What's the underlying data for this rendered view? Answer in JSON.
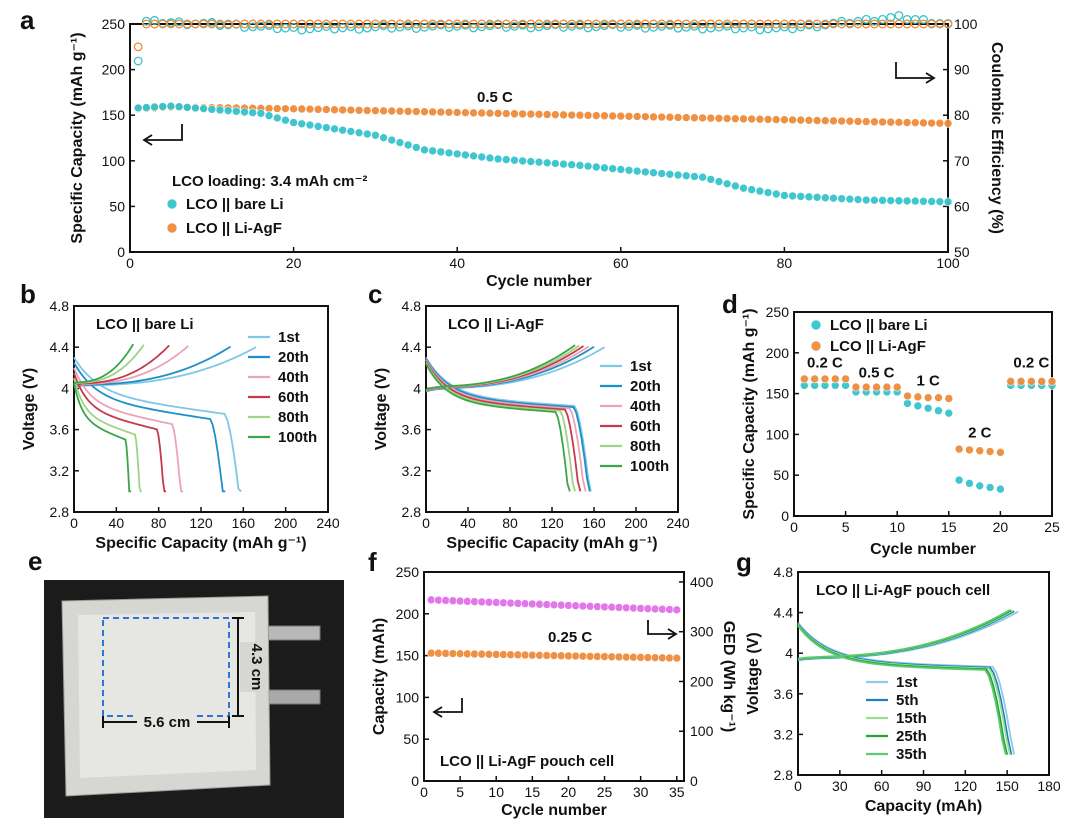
{
  "figure": {
    "panels": [
      "a",
      "b",
      "c",
      "d",
      "e",
      "f",
      "g"
    ]
  },
  "colors": {
    "teal": "#35c3cc",
    "orange": "#ee8b3a",
    "magenta": "#e070e8",
    "blue_box": "#2d74d8"
  },
  "chart_data": [
    {
      "id": "a",
      "type": "scatter",
      "xlabel": "Cycle number",
      "ylabel": "Specific Capacity (mAh g⁻¹)",
      "y2label": "Coulombic Efficiency (%)",
      "xlim": [
        0,
        100
      ],
      "ylim": [
        0,
        250
      ],
      "y2lim": [
        50,
        100
      ],
      "xticks": [
        "0",
        "20",
        "40",
        "60",
        "80",
        "100"
      ],
      "yticks": [
        "0",
        "50",
        "100",
        "150",
        "200",
        "250"
      ],
      "y2ticks": [
        "50",
        "60",
        "70",
        "80",
        "90",
        "100"
      ],
      "rate_label": "0.5 C",
      "loading_label": "LCO loading: 3.4 mAh cm⁻²",
      "series": [
        {
          "name": "LCO || bare Li",
          "color": "teal",
          "capacity_keypoints": [
            [
              1,
              158
            ],
            [
              5,
              160
            ],
            [
              12,
              155
            ],
            [
              16,
              152
            ],
            [
              20,
              142
            ],
            [
              30,
              128
            ],
            [
              36,
              112
            ],
            [
              45,
              102
            ],
            [
              55,
              95
            ],
            [
              65,
              86
            ],
            [
              70,
              82
            ],
            [
              75,
              70
            ],
            [
              80,
              62
            ],
            [
              90,
              57
            ],
            [
              100,
              55
            ]
          ],
          "ce_keypoints": [
            [
              1,
              92
            ],
            [
              2,
              100.5
            ],
            [
              10,
              100
            ],
            [
              20,
              99
            ],
            [
              40,
              99.5
            ],
            [
              60,
              99.5
            ],
            [
              80,
              99
            ],
            [
              94,
              101.5
            ],
            [
              100,
              100
            ]
          ]
        },
        {
          "name": "LCO || Li-AgF",
          "color": "orange",
          "capacity_keypoints": [
            [
              1,
              157
            ],
            [
              5,
              159
            ],
            [
              20,
              157
            ],
            [
              40,
              153
            ],
            [
              60,
              149
            ],
            [
              80,
              145
            ],
            [
              100,
              141
            ]
          ],
          "ce_keypoints": [
            [
              1,
              95
            ],
            [
              2,
              100
            ],
            [
              100,
              100
            ]
          ]
        }
      ]
    },
    {
      "id": "b",
      "type": "line",
      "inset_title": "LCO || bare Li",
      "xlabel": "Specific Capacity (mAh g⁻¹)",
      "ylabel": "Voltage (V)",
      "xlim": [
        0,
        240
      ],
      "ylim": [
        2.8,
        4.8
      ],
      "xticks": [
        "0",
        "40",
        "80",
        "120",
        "160",
        "200",
        "240"
      ],
      "yticks": [
        "2.8",
        "3.2",
        "3.6",
        "4",
        "4.4",
        "4.8"
      ],
      "series": [
        {
          "name": "1st",
          "charge_cap": 172,
          "discharge_cap": 158
        },
        {
          "name": "20th",
          "charge_cap": 148,
          "discharge_cap": 143
        },
        {
          "name": "40th",
          "charge_cap": 108,
          "discharge_cap": 103
        },
        {
          "name": "60th",
          "charge_cap": 90,
          "discharge_cap": 87
        },
        {
          "name": "80th",
          "charge_cap": 66,
          "discharge_cap": 64
        },
        {
          "name": "100th",
          "charge_cap": 56,
          "discharge_cap": 54
        }
      ]
    },
    {
      "id": "c",
      "type": "line",
      "inset_title": "LCO || Li-AgF",
      "xlabel": "Specific Capacity (mAh g⁻¹)",
      "ylabel": "Voltage (V)",
      "xlim": [
        0,
        240
      ],
      "ylim": [
        2.8,
        4.8
      ],
      "xticks": [
        "0",
        "40",
        "80",
        "120",
        "160",
        "200",
        "240"
      ],
      "yticks": [
        "2.8",
        "3.2",
        "3.6",
        "4",
        "4.4",
        "4.8"
      ],
      "series": [
        {
          "name": "1st",
          "charge_cap": 170,
          "discharge_cap": 157
        },
        {
          "name": "20th",
          "charge_cap": 160,
          "discharge_cap": 156
        },
        {
          "name": "40th",
          "charge_cap": 155,
          "discharge_cap": 152
        },
        {
          "name": "60th",
          "charge_cap": 150,
          "discharge_cap": 147
        },
        {
          "name": "80th",
          "charge_cap": 146,
          "discharge_cap": 142
        },
        {
          "name": "100th",
          "charge_cap": 142,
          "discharge_cap": 137
        }
      ]
    },
    {
      "id": "d",
      "type": "scatter",
      "xlabel": "Cycle number",
      "ylabel": "Specific Capacity (mAh g⁻¹)",
      "xlim": [
        0,
        25
      ],
      "ylim": [
        0,
        250
      ],
      "xticks": [
        "0",
        "5",
        "10",
        "15",
        "20",
        "25"
      ],
      "yticks": [
        "0",
        "50",
        "100",
        "150",
        "200",
        "250"
      ],
      "rate_labels": [
        {
          "text": "0.2 C",
          "x": 3,
          "y": 182
        },
        {
          "text": "0.5 C",
          "x": 8,
          "y": 170
        },
        {
          "text": "1 C",
          "x": 13,
          "y": 160
        },
        {
          "text": "2 C",
          "x": 18,
          "y": 96
        },
        {
          "text": "0.2 C",
          "x": 23,
          "y": 182
        }
      ],
      "series": [
        {
          "name": "LCO || bare Li",
          "color": "teal",
          "values": [
            160,
            160,
            160,
            160,
            160,
            152,
            152,
            152,
            152,
            152,
            138,
            135,
            132,
            129,
            126,
            44,
            40,
            37,
            35,
            33,
            160,
            160,
            160,
            160,
            160
          ]
        },
        {
          "name": "LCO || Li-AgF",
          "color": "orange",
          "values": [
            168,
            168,
            168,
            168,
            168,
            158,
            158,
            158,
            158,
            158,
            147,
            146,
            145,
            145,
            144,
            82,
            81,
            80,
            79,
            78,
            165,
            165,
            165,
            165,
            165
          ]
        }
      ]
    },
    {
      "id": "f",
      "type": "scatter",
      "xlabel": "Cycle number",
      "ylabel": "Capacity (mAh)",
      "y2label": "GED (Wh kg⁻¹)",
      "xlim": [
        0,
        36
      ],
      "ylim": [
        0,
        250
      ],
      "y2lim": [
        0,
        420
      ],
      "xticks": [
        "0",
        "5",
        "10",
        "15",
        "20",
        "25",
        "30",
        "35"
      ],
      "yticks": [
        "0",
        "50",
        "100",
        "150",
        "200",
        "250"
      ],
      "y2ticks": [
        "0",
        "100",
        "200",
        "300",
        "400"
      ],
      "rate_label": "0.25 C",
      "inset_title": "LCO || Li-AgF  pouch cell",
      "series": [
        {
          "name": "Capacity",
          "color": "orange",
          "start": 153,
          "end": 147
        },
        {
          "name": "GED",
          "color": "magenta",
          "start": 364,
          "end": 344
        }
      ]
    },
    {
      "id": "g",
      "type": "line",
      "inset_title": "LCO || Li-AgF  pouch cell",
      "xlabel": "Capacity (mAh)",
      "ylabel": "Voltage (V)",
      "xlim": [
        0,
        180
      ],
      "ylim": [
        2.8,
        4.8
      ],
      "xticks": [
        "0",
        "30",
        "60",
        "90",
        "120",
        "150",
        "180"
      ],
      "yticks": [
        "2.8",
        "3.2",
        "3.6",
        "4",
        "4.4",
        "4.8"
      ],
      "series": [
        {
          "name": "1st",
          "charge_cap": 158,
          "discharge_cap": 155
        },
        {
          "name": "5th",
          "charge_cap": 155,
          "discharge_cap": 153
        },
        {
          "name": "15th",
          "charge_cap": 154,
          "discharge_cap": 152
        },
        {
          "name": "25th",
          "charge_cap": 153,
          "discharge_cap": 150
        },
        {
          "name": "35th",
          "charge_cap": 152,
          "discharge_cap": 149
        }
      ]
    }
  ],
  "photo": {
    "width_label": "5.6 cm",
    "height_label": "4.3 cm"
  }
}
